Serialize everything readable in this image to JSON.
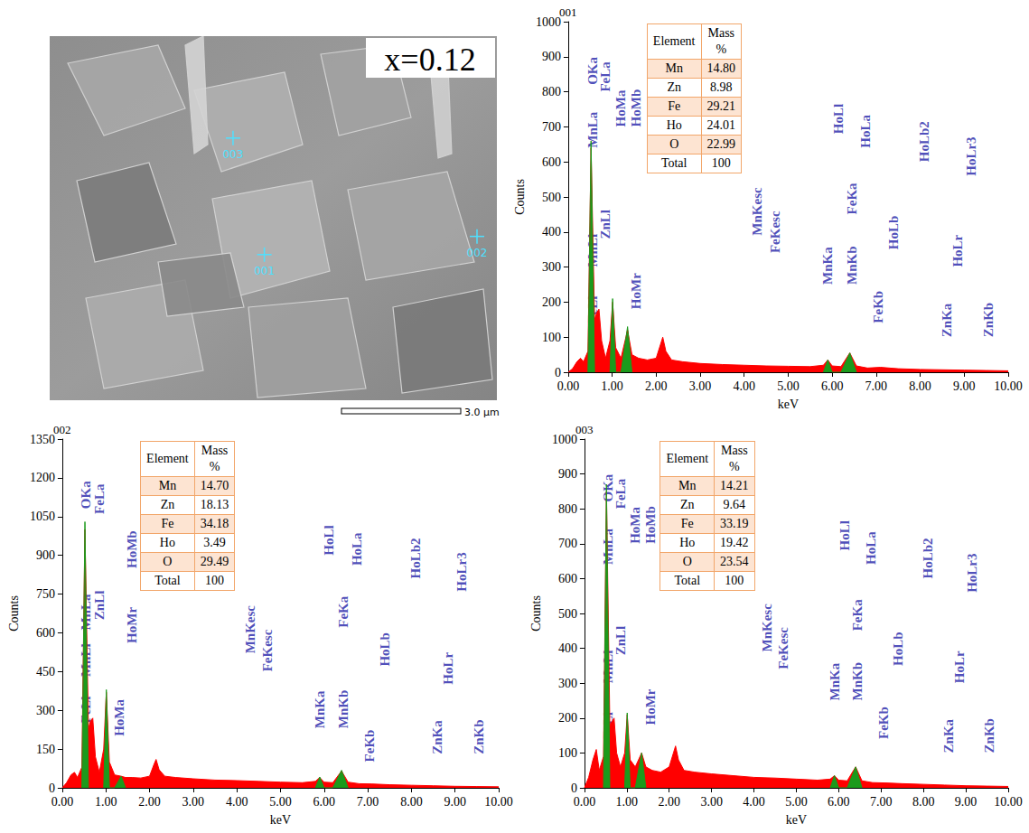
{
  "image": {
    "label": "x=0.12",
    "points": [
      "001",
      "002",
      "003"
    ],
    "scale_bar": "3.0 μm"
  },
  "chart_data": [
    {
      "type": "line",
      "title": "001",
      "x_label": "keV",
      "y_label": "Counts",
      "xlim": [
        0,
        10
      ],
      "xticks": [
        {
          "value": 0,
          "label": "0.00"
        },
        {
          "value": 1,
          "label": "1.00"
        },
        {
          "value": 2,
          "label": "2.00"
        },
        {
          "value": 3,
          "label": "3.00"
        },
        {
          "value": 4,
          "label": "4.00"
        },
        {
          "value": 5,
          "label": "5.00"
        },
        {
          "value": 6,
          "label": "6.00"
        },
        {
          "value": 7,
          "label": "7.00"
        },
        {
          "value": 8,
          "label": "8.00"
        },
        {
          "value": 9,
          "label": "9.00"
        },
        {
          "value": 10,
          "label": "10.00"
        }
      ],
      "ylim": [
        0,
        1000
      ],
      "yticks": [
        0,
        100,
        200,
        300,
        400,
        500,
        600,
        700,
        800,
        900,
        1000
      ],
      "grid": false,
      "x": [
        0,
        0.1,
        0.2,
        0.28,
        0.35,
        0.45,
        0.52,
        0.6,
        0.65,
        0.7,
        0.76,
        0.85,
        0.95,
        1.01,
        1.08,
        1.2,
        1.35,
        1.45,
        1.6,
        1.8,
        2.0,
        2.1,
        2.15,
        2.22,
        2.35,
        2.6,
        3.0,
        3.5,
        4.0,
        4.5,
        5.0,
        5.5,
        5.8,
        5.9,
        6.0,
        6.2,
        6.4,
        6.55,
        6.8,
        7.1,
        7.5,
        8.0,
        8.5,
        9.0,
        9.5,
        10
      ],
      "series": [
        {
          "color": "#ff0000",
          "values": [
            0,
            10,
            30,
            40,
            30,
            60,
            640,
            150,
            170,
            180,
            90,
            40,
            90,
            200,
            70,
            40,
            120,
            50,
            40,
            35,
            40,
            80,
            100,
            60,
            35,
            30,
            25,
            22,
            20,
            18,
            17,
            16,
            20,
            35,
            18,
            16,
            55,
            18,
            12,
            14,
            10,
            8,
            7,
            6,
            5,
            4
          ]
        },
        {
          "color": "#1c9a1c",
          "values": [
            null,
            null,
            null,
            null,
            null,
            0,
            660,
            0,
            null,
            null,
            null,
            null,
            0,
            210,
            0,
            0,
            130,
            0,
            null,
            null,
            null,
            null,
            null,
            null,
            null,
            null,
            null,
            null,
            null,
            null,
            null,
            null,
            0,
            35,
            0,
            0,
            55,
            0,
            null,
            null,
            null,
            null,
            null,
            null,
            null,
            null
          ]
        }
      ],
      "annotations": [
        {
          "text": "FeLl",
          "x": 0.55,
          "y": 140
        },
        {
          "text": "MnLl",
          "x": 0.55,
          "y": 300
        },
        {
          "text": "MnLa",
          "x": 0.55,
          "y": 640
        },
        {
          "text": "OKa",
          "x": 0.55,
          "y": 820
        },
        {
          "text": "ZnLl",
          "x": 0.85,
          "y": 380
        },
        {
          "text": "FeLa",
          "x": 0.85,
          "y": 800
        },
        {
          "text": "HoMa",
          "x": 1.2,
          "y": 700
        },
        {
          "text": "HoMr",
          "x": 1.55,
          "y": 180
        },
        {
          "text": "HoMb",
          "x": 1.55,
          "y": 700
        },
        {
          "text": "MnKesc",
          "x": 4.3,
          "y": 390
        },
        {
          "text": "FeKesc",
          "x": 4.7,
          "y": 340
        },
        {
          "text": "MnKa",
          "x": 5.9,
          "y": 250
        },
        {
          "text": "HoLl",
          "x": 6.15,
          "y": 680
        },
        {
          "text": "MnKb",
          "x": 6.45,
          "y": 250
        },
        {
          "text": "FeKa",
          "x": 6.45,
          "y": 450
        },
        {
          "text": "HoLa",
          "x": 6.75,
          "y": 640
        },
        {
          "text": "FeKb",
          "x": 7.05,
          "y": 140
        },
        {
          "text": "HoLb",
          "x": 7.4,
          "y": 350
        },
        {
          "text": "HoLb2",
          "x": 8.1,
          "y": 600
        },
        {
          "text": "ZnKa",
          "x": 8.6,
          "y": 100
        },
        {
          "text": "HoLr",
          "x": 8.85,
          "y": 300
        },
        {
          "text": "HoLr3",
          "x": 9.15,
          "y": 560
        },
        {
          "text": "ZnKb",
          "x": 9.55,
          "y": 100
        }
      ],
      "table": {
        "header": [
          "Element",
          "Mass %"
        ],
        "rows": [
          [
            "Mn",
            "14.80"
          ],
          [
            "Zn",
            "8.98"
          ],
          [
            "Fe",
            "29.21"
          ],
          [
            "Ho",
            "24.01"
          ],
          [
            "O",
            "22.99"
          ],
          [
            "Total",
            "100"
          ]
        ]
      }
    },
    {
      "type": "line",
      "title": "002",
      "x_label": "keV",
      "y_label": "Counts",
      "xlim": [
        0,
        10
      ],
      "xticks": [
        {
          "value": 0,
          "label": "0.00"
        },
        {
          "value": 1,
          "label": "1.00"
        },
        {
          "value": 2,
          "label": "2.00"
        },
        {
          "value": 3,
          "label": "3.00"
        },
        {
          "value": 4,
          "label": "4.00"
        },
        {
          "value": 5,
          "label": "5.00"
        },
        {
          "value": 6,
          "label": "6.00"
        },
        {
          "value": 7,
          "label": "7.00"
        },
        {
          "value": 8,
          "label": "8.00"
        },
        {
          "value": 9,
          "label": "9.00"
        },
        {
          "value": 10,
          "label": "10.00"
        }
      ],
      "ylim": [
        0,
        1350
      ],
      "yticks": [
        0,
        150,
        300,
        450,
        600,
        750,
        900,
        1050,
        1200,
        1350
      ],
      "grid": false,
      "x": [
        0,
        0.1,
        0.2,
        0.28,
        0.35,
        0.45,
        0.52,
        0.6,
        0.65,
        0.7,
        0.76,
        0.85,
        0.95,
        1.01,
        1.08,
        1.2,
        1.35,
        1.45,
        1.6,
        1.8,
        2.0,
        2.1,
        2.15,
        2.22,
        2.35,
        2.6,
        3.0,
        3.5,
        4.0,
        4.5,
        5.0,
        5.5,
        5.8,
        5.9,
        6.0,
        6.2,
        6.4,
        6.55,
        6.8,
        7.1,
        7.5,
        8.0,
        8.5,
        9.0,
        9.5,
        10
      ],
      "series": [
        {
          "color": "#ff0000",
          "values": [
            0,
            20,
            50,
            60,
            40,
            80,
            1000,
            230,
            260,
            270,
            120,
            60,
            150,
            370,
            100,
            50,
            45,
            40,
            40,
            38,
            45,
            90,
            110,
            70,
            45,
            40,
            35,
            30,
            28,
            25,
            22,
            20,
            25,
            40,
            22,
            20,
            65,
            22,
            16,
            15,
            12,
            10,
            8,
            6,
            5,
            4
          ]
        },
        {
          "color": "#1c9a1c",
          "values": [
            null,
            null,
            null,
            null,
            null,
            0,
            1030,
            0,
            null,
            null,
            null,
            null,
            0,
            380,
            0,
            0,
            45,
            0,
            null,
            null,
            null,
            null,
            null,
            null,
            null,
            null,
            null,
            null,
            null,
            null,
            null,
            null,
            0,
            42,
            0,
            0,
            68,
            0,
            null,
            null,
            null,
            null,
            null,
            null,
            null,
            null
          ]
        }
      ],
      "annotations": [
        {
          "text": "FeLl",
          "x": 0.55,
          "y": 250
        },
        {
          "text": "MnLl",
          "x": 0.55,
          "y": 430
        },
        {
          "text": "MnLa",
          "x": 0.55,
          "y": 610
        },
        {
          "text": "OKa",
          "x": 0.55,
          "y": 1080
        },
        {
          "text": "ZnLl",
          "x": 0.85,
          "y": 650
        },
        {
          "text": "FeLa",
          "x": 0.85,
          "y": 1060
        },
        {
          "text": "HoMa",
          "x": 1.3,
          "y": 200
        },
        {
          "text": "HoMr",
          "x": 1.6,
          "y": 560
        },
        {
          "text": "HoMb",
          "x": 1.6,
          "y": 850
        },
        {
          "text": "MnKesc",
          "x": 4.3,
          "y": 520
        },
        {
          "text": "FeKesc",
          "x": 4.7,
          "y": 450
        },
        {
          "text": "MnKa",
          "x": 5.9,
          "y": 230
        },
        {
          "text": "HoLl",
          "x": 6.1,
          "y": 900
        },
        {
          "text": "MnKb",
          "x": 6.45,
          "y": 230
        },
        {
          "text": "FeKa",
          "x": 6.45,
          "y": 620
        },
        {
          "text": "HoLa",
          "x": 6.75,
          "y": 860
        },
        {
          "text": "FeKb",
          "x": 7.05,
          "y": 100
        },
        {
          "text": "HoLb",
          "x": 7.4,
          "y": 470
        },
        {
          "text": "HoLb2",
          "x": 8.1,
          "y": 810
        },
        {
          "text": "ZnKa",
          "x": 8.6,
          "y": 130
        },
        {
          "text": "HoLr",
          "x": 8.85,
          "y": 400
        },
        {
          "text": "HoLr3",
          "x": 9.15,
          "y": 760
        },
        {
          "text": "ZnKb",
          "x": 9.55,
          "y": 130
        }
      ],
      "table": {
        "header": [
          "Element",
          "Mass %"
        ],
        "rows": [
          [
            "Mn",
            "14.70"
          ],
          [
            "Zn",
            "18.13"
          ],
          [
            "Fe",
            "34.18"
          ],
          [
            "Ho",
            "3.49"
          ],
          [
            "O",
            "29.49"
          ],
          [
            "Total",
            "100"
          ]
        ]
      }
    },
    {
      "type": "line",
      "title": "003",
      "x_label": "keV",
      "y_label": "Counts",
      "xlim": [
        0,
        10
      ],
      "xticks": [
        {
          "value": 0,
          "label": "0.00"
        },
        {
          "value": 1,
          "label": "1.00"
        },
        {
          "value": 2,
          "label": "2.00"
        },
        {
          "value": 3,
          "label": "3.00"
        },
        {
          "value": 4,
          "label": "4.00"
        },
        {
          "value": 5,
          "label": "5.00"
        },
        {
          "value": 6,
          "label": "6.00"
        },
        {
          "value": 7,
          "label": "7.00"
        },
        {
          "value": 8,
          "label": "8.00"
        },
        {
          "value": 9,
          "label": "9.00"
        },
        {
          "value": 10,
          "label": "10.00"
        }
      ],
      "ylim": [
        0,
        1000
      ],
      "yticks": [
        0,
        100,
        200,
        300,
        400,
        500,
        600,
        700,
        800,
        900,
        1000
      ],
      "grid": false,
      "x": [
        0,
        0.1,
        0.2,
        0.28,
        0.35,
        0.45,
        0.52,
        0.6,
        0.65,
        0.7,
        0.76,
        0.85,
        0.95,
        1.01,
        1.08,
        1.2,
        1.35,
        1.45,
        1.6,
        1.8,
        2.0,
        2.1,
        2.15,
        2.22,
        2.35,
        2.6,
        3.0,
        3.5,
        4.0,
        4.5,
        5.0,
        5.5,
        5.8,
        5.9,
        6.0,
        6.2,
        6.4,
        6.55,
        6.8,
        7.1,
        7.5,
        8.0,
        8.5,
        9.0,
        9.5,
        10
      ],
      "series": [
        {
          "color": "#ff0000",
          "values": [
            0,
            30,
            80,
            110,
            50,
            90,
            850,
            180,
            190,
            200,
            100,
            60,
            100,
            210,
            80,
            60,
            100,
            60,
            50,
            45,
            60,
            100,
            120,
            80,
            50,
            45,
            40,
            35,
            30,
            28,
            25,
            22,
            25,
            35,
            22,
            20,
            60,
            20,
            15,
            14,
            12,
            10,
            8,
            6,
            5,
            4
          ]
        },
        {
          "color": "#1c9a1c",
          "values": [
            null,
            null,
            null,
            null,
            null,
            0,
            870,
            0,
            null,
            null,
            null,
            null,
            0,
            215,
            0,
            0,
            100,
            0,
            null,
            null,
            null,
            null,
            null,
            null,
            null,
            null,
            null,
            null,
            null,
            null,
            null,
            null,
            0,
            35,
            0,
            0,
            60,
            0,
            null,
            null,
            null,
            null,
            null,
            null,
            null,
            null
          ]
        }
      ],
      "annotations": [
        {
          "text": "FeLl",
          "x": 0.55,
          "y": 140
        },
        {
          "text": "MnLl",
          "x": 0.55,
          "y": 300
        },
        {
          "text": "MnLa",
          "x": 0.55,
          "y": 640
        },
        {
          "text": "OKa",
          "x": 0.55,
          "y": 820
        },
        {
          "text": "ZnLl",
          "x": 0.85,
          "y": 380
        },
        {
          "text": "FeLa",
          "x": 0.85,
          "y": 800
        },
        {
          "text": "HoMa",
          "x": 1.2,
          "y": 700
        },
        {
          "text": "HoMr",
          "x": 1.55,
          "y": 180
        },
        {
          "text": "HoMb",
          "x": 1.55,
          "y": 700
        },
        {
          "text": "MnKesc",
          "x": 4.3,
          "y": 390
        },
        {
          "text": "FeKesc",
          "x": 4.7,
          "y": 340
        },
        {
          "text": "MnKa",
          "x": 5.9,
          "y": 250
        },
        {
          "text": "HoLl",
          "x": 6.15,
          "y": 680
        },
        {
          "text": "MnKb",
          "x": 6.45,
          "y": 250
        },
        {
          "text": "FeKa",
          "x": 6.45,
          "y": 450
        },
        {
          "text": "HoLa",
          "x": 6.75,
          "y": 640
        },
        {
          "text": "FeKb",
          "x": 7.05,
          "y": 140
        },
        {
          "text": "HoLb",
          "x": 7.4,
          "y": 350
        },
        {
          "text": "HoLb2",
          "x": 8.1,
          "y": 600
        },
        {
          "text": "ZnKa",
          "x": 8.6,
          "y": 100
        },
        {
          "text": "HoLr",
          "x": 8.85,
          "y": 300
        },
        {
          "text": "HoLr3",
          "x": 9.15,
          "y": 560
        },
        {
          "text": "ZnKb",
          "x": 9.55,
          "y": 100
        }
      ],
      "table": {
        "header": [
          "Element",
          "Mass %"
        ],
        "rows": [
          [
            "Mn",
            "14.21"
          ],
          [
            "Zn",
            "9.64"
          ],
          [
            "Fe",
            "33.19"
          ],
          [
            "Ho",
            "19.42"
          ],
          [
            "O",
            "23.54"
          ],
          [
            "Total",
            "100"
          ]
        ]
      }
    }
  ]
}
